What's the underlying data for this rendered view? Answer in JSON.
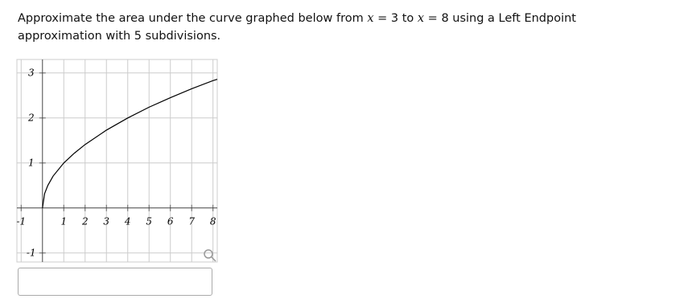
{
  "question": [
    "Approximate the area under the curve graphed below from ",
    "x",
    " = 3 to ",
    "x",
    " = 8 using a Left Endpoint approximation with 5 subdivisions."
  ],
  "chart_data": {
    "type": "line",
    "x": [
      0,
      0.1,
      0.25,
      0.5,
      1,
      1.5,
      2,
      3,
      4,
      5,
      6,
      7,
      8,
      8.2
    ],
    "values": [
      0,
      0.32,
      0.5,
      0.71,
      1,
      1.22,
      1.41,
      1.73,
      2,
      2.24,
      2.45,
      2.65,
      2.83,
      2.86
    ],
    "color": "#000000",
    "xlim": [
      -1.2,
      8.2
    ],
    "ylim": [
      -1.2,
      3.3
    ],
    "xticks": [
      -1,
      1,
      2,
      3,
      4,
      5,
      6,
      7,
      8
    ],
    "yticks": [
      -1,
      1,
      2,
      3
    ],
    "grid": true
  }
}
